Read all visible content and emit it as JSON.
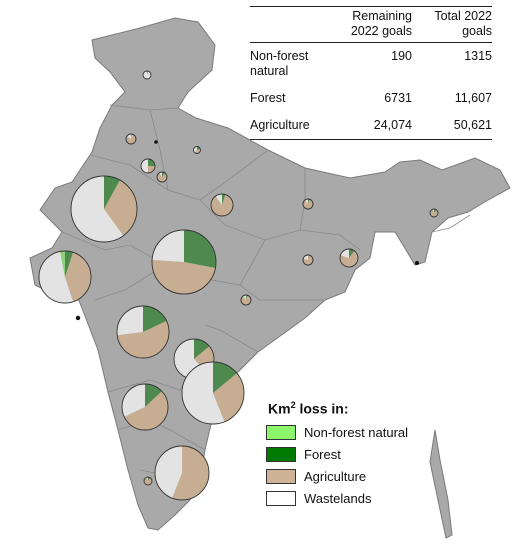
{
  "map_data": {
    "legend": {
      "title_main": "Km",
      "title_sup": "2",
      "title_rest": " loss in:",
      "items": [
        {
          "label": "Non-forest natural",
          "color": "#8cf56b"
        },
        {
          "label": "Forest",
          "color": "#007a00"
        },
        {
          "label": "Agriculture",
          "color": "#cfb397"
        },
        {
          "label": "Wastelands",
          "color": "#ffffff"
        }
      ]
    },
    "colors": {
      "land": "#a9a9a9",
      "borders": "#8a8a8a",
      "pie_forest": "#4e8a4e",
      "pie_agri": "#c7ad92",
      "pie_waste": "#e3e3e3",
      "pie_nonforest": "#8cd17a"
    },
    "pies": [
      {
        "region": "north-1",
        "shares": {
          "nonforest": 0.0,
          "forest": 0.03,
          "agriculture": 0.03,
          "wastelands": 0.94
        }
      },
      {
        "region": "north-2",
        "shares": {
          "nonforest": 0.0,
          "forest": 0.0,
          "agriculture": 0.85,
          "wastelands": 0.15
        }
      },
      {
        "region": "north-3",
        "shares": {
          "nonforest": 0.0,
          "forest": 0.2,
          "agriculture": 0.4,
          "wastelands": 0.4
        }
      },
      {
        "region": "north-4",
        "shares": {
          "nonforest": 0.0,
          "forest": 0.25,
          "agriculture": 0.25,
          "wastelands": 0.5
        }
      },
      {
        "region": "north-5",
        "shares": {
          "nonforest": 0.0,
          "forest": 0.1,
          "agriculture": 0.8,
          "wastelands": 0.1
        }
      },
      {
        "region": "north-6",
        "shares": {
          "nonforest": 0.0,
          "forest": 0.2,
          "agriculture": 0.4,
          "wastelands": 0.4
        }
      },
      {
        "region": "rajasthan",
        "shares": {
          "nonforest": 0.0,
          "forest": 0.08,
          "agriculture": 0.32,
          "wastelands": 0.6
        }
      },
      {
        "region": "central-n",
        "shares": {
          "nonforest": 0.0,
          "forest": 0.05,
          "agriculture": 0.85,
          "wastelands": 0.1
        }
      },
      {
        "region": "gujarat",
        "shares": {
          "nonforest": 0.03,
          "forest": 0.05,
          "agriculture": 0.4,
          "wastelands": 0.52
        }
      },
      {
        "region": "mp",
        "shares": {
          "nonforest": 0.0,
          "forest": 0.28,
          "agriculture": 0.48,
          "wastelands": 0.24
        }
      },
      {
        "region": "east-1",
        "shares": {
          "nonforest": 0.0,
          "forest": 0.05,
          "agriculture": 0.85,
          "wastelands": 0.1
        }
      },
      {
        "region": "east-2",
        "shares": {
          "nonforest": 0.0,
          "forest": 0.1,
          "agriculture": 0.7,
          "wastelands": 0.2
        }
      },
      {
        "region": "east-3",
        "shares": {
          "nonforest": 0.0,
          "forest": 0.0,
          "agriculture": 0.8,
          "wastelands": 0.2
        }
      },
      {
        "region": "east-4",
        "shares": {
          "nonforest": 0.0,
          "forest": 0.05,
          "agriculture": 0.85,
          "wastelands": 0.1
        }
      },
      {
        "region": "maharashtra",
        "shares": {
          "nonforest": 0.0,
          "forest": 0.18,
          "agriculture": 0.55,
          "wastelands": 0.27
        }
      },
      {
        "region": "telangana",
        "shares": {
          "nonforest": 0.0,
          "forest": 0.14,
          "agriculture": 0.24,
          "wastelands": 0.62
        }
      },
      {
        "region": "andhra",
        "shares": {
          "nonforest": 0.0,
          "forest": 0.14,
          "agriculture": 0.3,
          "wastelands": 0.56
        }
      },
      {
        "region": "karnataka",
        "shares": {
          "nonforest": 0.0,
          "forest": 0.13,
          "agriculture": 0.55,
          "wastelands": 0.32
        }
      },
      {
        "region": "tamilnadu",
        "shares": {
          "nonforest": 0.0,
          "forest": 0.0,
          "agriculture": 0.56,
          "wastelands": 0.44
        }
      },
      {
        "region": "kerala",
        "shares": {
          "nonforest": 0.0,
          "forest": 0.1,
          "agriculture": 0.85,
          "wastelands": 0.05
        }
      },
      {
        "region": "ne-1",
        "shares": {
          "nonforest": 0.0,
          "forest": 0.1,
          "agriculture": 0.85,
          "wastelands": 0.05
        }
      }
    ]
  },
  "table": {
    "col_blank": "",
    "col_remaining": "Remaining 2022 goals",
    "col_total": "Total 2022 goals",
    "rows": [
      {
        "label": "Non-forest natural",
        "remaining": "190",
        "total": "1315"
      },
      {
        "label": "Forest",
        "remaining": "6731",
        "total": "11,607"
      },
      {
        "label": "Agriculture",
        "remaining": "24,074",
        "total": "50,621"
      }
    ]
  }
}
